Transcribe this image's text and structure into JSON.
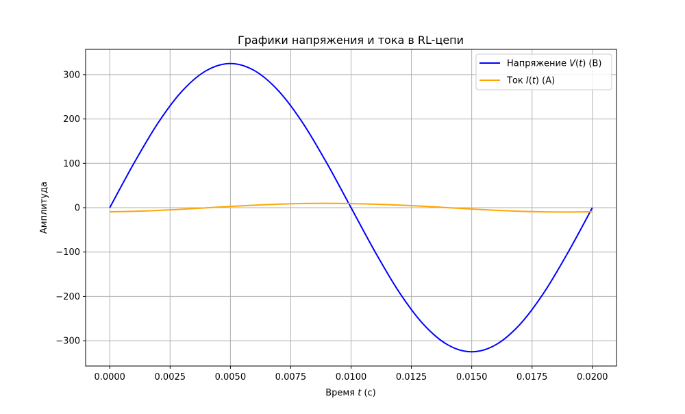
{
  "chart_data": {
    "type": "line",
    "title": "Графики напряжения и тока в RL-цепи",
    "xlabel": {
      "prefix": "Время ",
      "var": "t",
      "suffix": " (с)"
    },
    "ylabel": "Амплитуда",
    "xlim": [
      -0.001,
      0.021
    ],
    "ylim": [
      -357,
      357
    ],
    "x_ticks": [
      0.0,
      0.0025,
      0.005,
      0.0075,
      0.01,
      0.0125,
      0.015,
      0.0175,
      0.02
    ],
    "x_tick_labels": [
      "0.0000",
      "0.0025",
      "0.0050",
      "0.0075",
      "0.0100",
      "0.0125",
      "0.0150",
      "0.0175",
      "0.0200"
    ],
    "y_ticks": [
      -300,
      -200,
      -100,
      0,
      100,
      200,
      300
    ],
    "y_tick_labels": [
      "−300",
      "−200",
      "−100",
      "0",
      "100",
      "200",
      "300"
    ],
    "grid": true,
    "legend_position": "top-right",
    "series": [
      {
        "name": "Напряжение V(t) (В)",
        "legend": {
          "prefix": "Напряжение ",
          "var": "V",
          "mid": "(",
          "var2": "t",
          "suffix": ") (В)"
        },
        "color": "#0000ff",
        "x": [
          0.0,
          0.001,
          0.002,
          0.003,
          0.004,
          0.005,
          0.006,
          0.007,
          0.008,
          0.009,
          0.01,
          0.011,
          0.012,
          0.013,
          0.014,
          0.015,
          0.016,
          0.017,
          0.018,
          0.019,
          0.02
        ],
        "y": [
          0,
          100,
          191,
          263,
          309,
          325,
          309,
          263,
          191,
          100,
          0,
          -100,
          -191,
          -263,
          -309,
          -325,
          -309,
          -263,
          -191,
          -100,
          0
        ]
      },
      {
        "name": "Ток I(t) (А)",
        "legend": {
          "prefix": "Ток ",
          "var": "I",
          "mid": "(",
          "var2": "t",
          "suffix": ") (А)"
        },
        "color": "#ffa500",
        "x": [
          0.0,
          0.001,
          0.002,
          0.003,
          0.004,
          0.005,
          0.006,
          0.007,
          0.008,
          0.009,
          0.01,
          0.011,
          0.012,
          0.013,
          0.014,
          0.015,
          0.016,
          0.017,
          0.018,
          0.019,
          0.02
        ],
        "y": [
          -9.3,
          -8.2,
          -6.2,
          -3.5,
          -0.3,
          2.9,
          5.6,
          8.0,
          9.4,
          9.9,
          9.3,
          7.9,
          5.8,
          3.2,
          0.1,
          -3.1,
          -5.9,
          -8.1,
          -9.5,
          -9.9,
          -9.3
        ]
      }
    ]
  }
}
